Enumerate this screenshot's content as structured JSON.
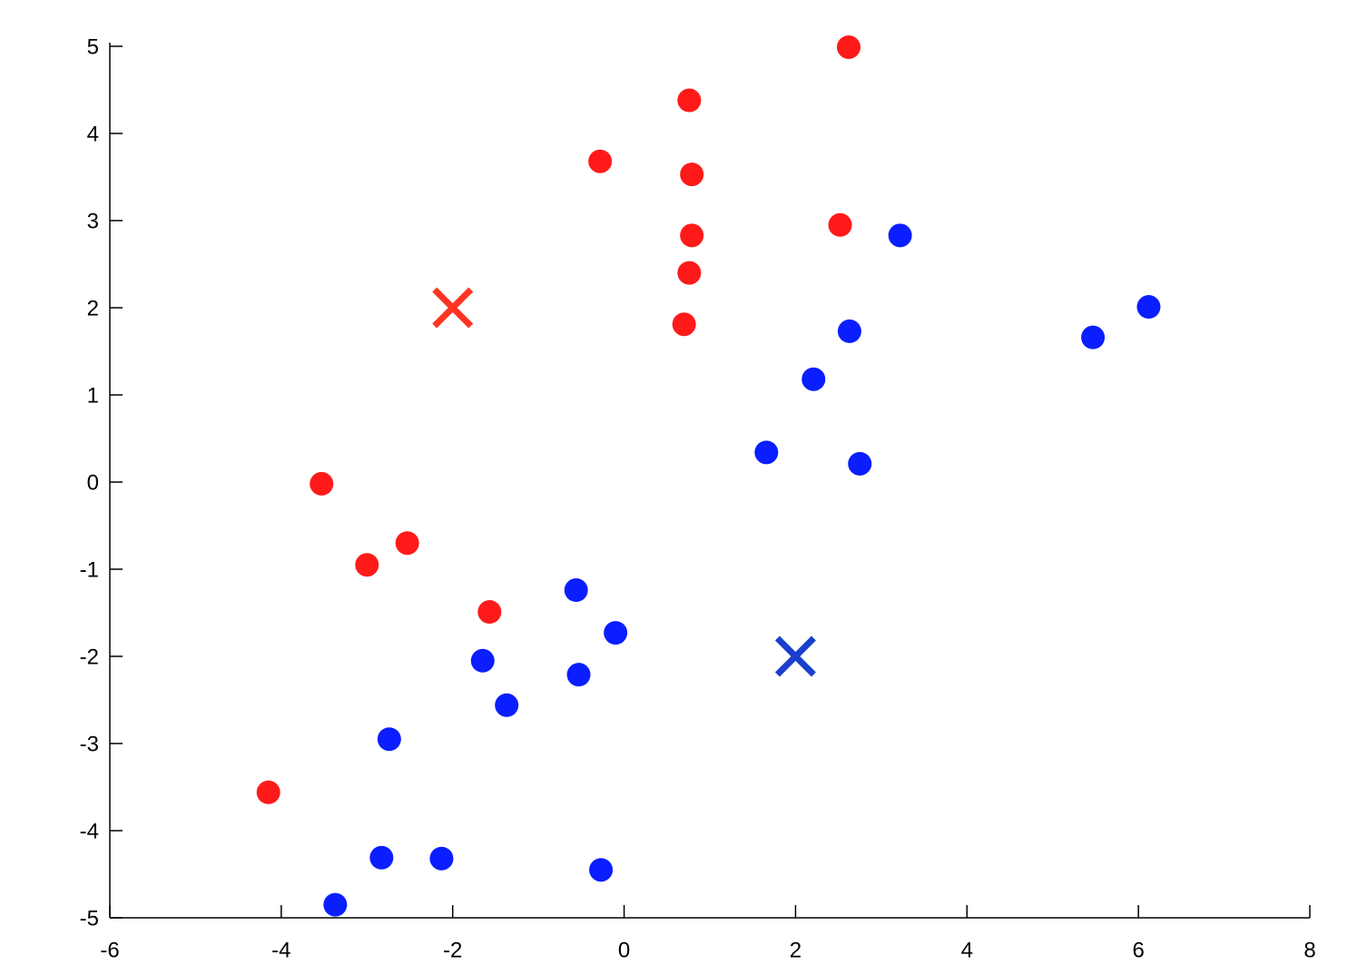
{
  "chart_data": {
    "type": "scatter",
    "xlim": [
      -6,
      8
    ],
    "xticks": [
      -6,
      -4,
      -2,
      0,
      2,
      4,
      6,
      8
    ],
    "ylim": [
      -5,
      5
    ],
    "yticks": [
      -5,
      -4,
      -3,
      -2,
      -1,
      0,
      1,
      2,
      3,
      4,
      5
    ],
    "series": [
      {
        "color": "#ff1a1a",
        "marker": "circle",
        "x": [
          2.62,
          0.76,
          -0.28,
          0.79,
          2.52,
          0.79,
          0.76,
          0.7,
          -3.53,
          -2.53,
          -3.0,
          -1.57,
          -4.15
        ],
        "y": [
          4.99,
          4.38,
          3.68,
          3.53,
          2.95,
          2.83,
          2.4,
          1.81,
          -0.02,
          -0.7,
          -0.95,
          -1.49,
          -3.56
        ]
      },
      {
        "color": "#0a1eff",
        "marker": "circle",
        "x": [
          3.22,
          6.12,
          5.47,
          2.63,
          2.21,
          1.66,
          2.75,
          -0.56,
          -0.1,
          -1.65,
          -0.53,
          -1.37,
          -2.74,
          -2.83,
          -2.13,
          -0.27,
          -3.37
        ],
        "y": [
          2.83,
          2.01,
          1.66,
          1.73,
          1.18,
          0.34,
          0.21,
          -1.24,
          -1.73,
          -2.05,
          -2.21,
          -2.56,
          -2.95,
          -4.31,
          -4.32,
          -4.45,
          -4.85
        ]
      },
      {
        "color": "#ff3322",
        "marker": "cross",
        "x": [
          -2
        ],
        "y": [
          2
        ]
      },
      {
        "color": "#1a3fcc",
        "marker": "cross",
        "x": [
          2
        ],
        "y": [
          -2
        ]
      }
    ]
  }
}
